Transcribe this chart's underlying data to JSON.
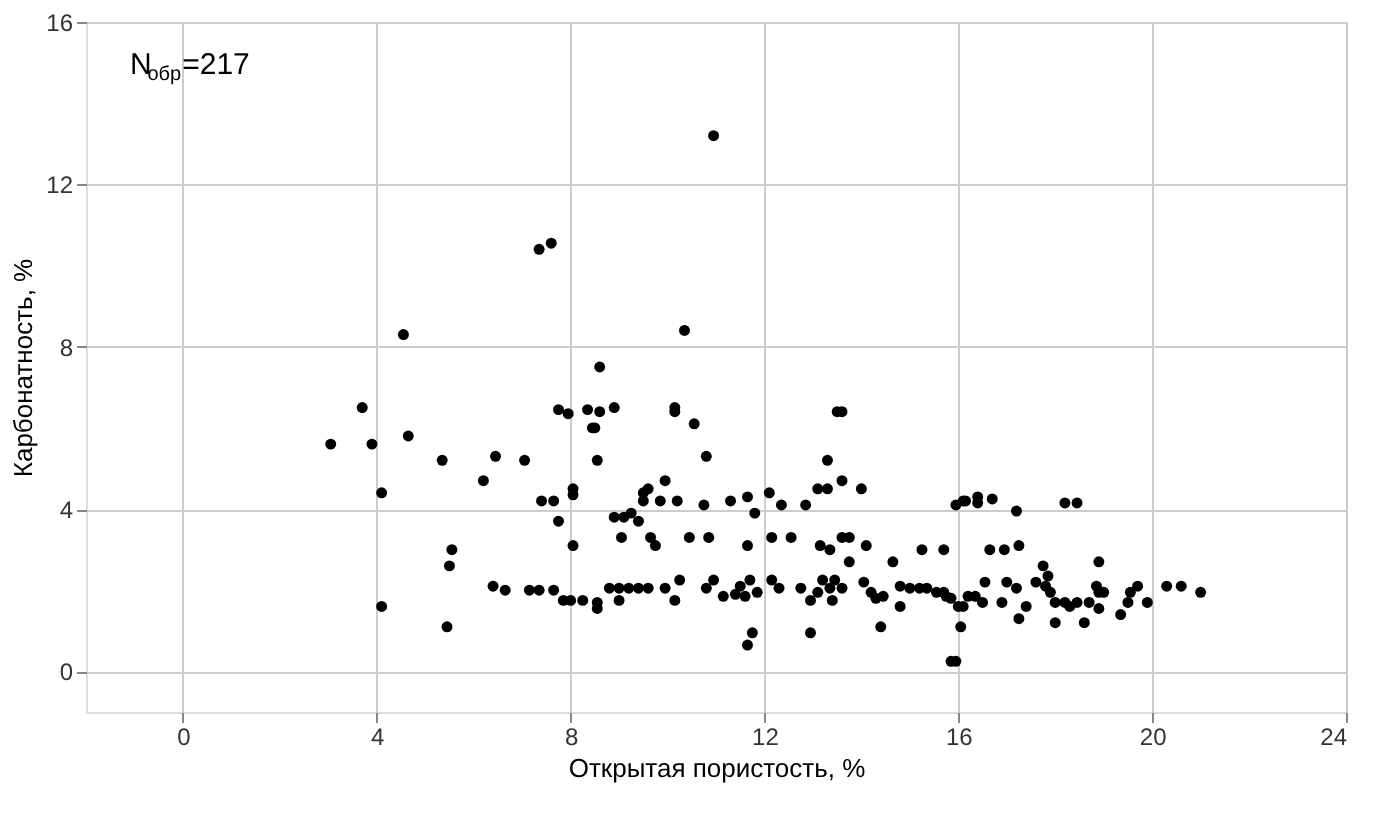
{
  "chart_data": {
    "type": "scatter",
    "xlabel": "Открытая пористость, %",
    "ylabel": "Карбонатность, %",
    "annotations": [
      "N$_{обр}$=217"
    ],
    "xlim": [
      -2,
      24
    ],
    "xticks": [
      0,
      4,
      8,
      12,
      16,
      20,
      24
    ],
    "ylim": [
      -1,
      16
    ],
    "yticks": [
      0,
      4,
      8,
      12,
      16
    ],
    "grid": true,
    "marker": "circle",
    "series": [
      {
        "color": "#000000",
        "x": [
          7.35,
          7.6,
          4.55,
          3.7,
          3.05,
          3.9,
          4.65,
          4.1,
          5.35,
          6.45,
          7.05,
          6.2,
          7.4,
          7.65,
          7.75,
          8.05,
          8.05,
          8.05,
          7.75,
          7.95,
          8.35,
          8.45,
          5.55,
          5.5,
          6.4,
          6.65,
          7.15,
          7.35,
          7.65,
          7.85,
          8.0,
          8.25,
          4.1,
          5.45,
          10.35,
          10.95,
          8.6,
          8.6,
          8.9,
          8.5,
          8.55,
          10.15,
          10.15,
          10.55,
          10.8,
          13.5,
          13.6,
          13.3,
          13.1,
          13.3,
          13.6,
          14.0,
          9.5,
          9.6,
          9.95,
          9.5,
          9.85,
          10.2,
          8.9,
          9.1,
          9.25,
          9.4,
          10.75,
          11.3,
          11.65,
          12.1,
          12.35,
          12.85,
          11.8,
          9.05,
          9.65,
          9.75,
          10.45,
          10.85,
          11.65,
          12.15,
          12.55,
          13.15,
          13.35,
          13.6,
          13.75,
          13.75,
          14.1,
          14.65,
          15.25,
          15.7,
          15.95,
          16.15,
          11.65,
          11.75,
          12.95,
          14.4,
          16.05,
          15.85,
          15.95,
          8.55,
          8.55,
          8.8,
          9.0,
          9.0,
          9.2,
          9.4,
          9.6,
          9.95,
          10.15,
          10.25,
          10.8,
          10.95,
          11.15,
          11.4,
          11.5,
          11.6,
          11.7,
          11.85,
          12.15,
          12.3,
          12.75,
          12.95,
          13.1,
          13.2,
          13.35,
          13.45,
          13.4,
          13.6,
          14.05,
          14.2,
          14.3,
          14.45,
          14.8,
          14.8,
          15.0,
          15.2,
          15.35,
          15.55,
          15.75,
          16.0,
          16.2,
          16.1,
          16.4,
          16.4,
          16.7,
          17.2,
          18.2,
          18.45,
          16.65,
          16.95,
          17.25,
          18.9,
          17.75,
          17.25,
          18.0,
          18.6,
          15.7,
          15.85,
          16.1,
          16.35,
          16.5,
          16.55,
          16.9,
          17.0,
          17.2,
          17.4,
          17.6,
          17.8,
          17.85,
          17.9,
          18.0,
          18.2,
          18.3,
          18.45,
          18.7,
          18.85,
          18.9,
          19.0,
          18.9,
          19.35,
          19.5,
          19.55,
          19.7,
          19.9,
          20.3,
          20.6,
          21.0
        ],
        "values": [
          10.4,
          10.55,
          8.3,
          6.5,
          5.6,
          5.6,
          5.8,
          4.4,
          5.2,
          5.3,
          5.2,
          4.7,
          4.2,
          4.2,
          3.7,
          4.5,
          4.35,
          3.1,
          6.45,
          6.35,
          6.45,
          6.0,
          3.0,
          2.6,
          2.1,
          2.0,
          2.0,
          2.0,
          2.0,
          1.75,
          1.75,
          1.75,
          1.6,
          1.1,
          8.4,
          13.2,
          7.5,
          6.4,
          6.5,
          6.0,
          5.2,
          6.5,
          6.4,
          6.1,
          5.3,
          6.4,
          6.4,
          5.2,
          4.5,
          4.5,
          4.7,
          4.5,
          4.4,
          4.5,
          4.7,
          4.2,
          4.2,
          4.2,
          3.8,
          3.8,
          3.9,
          3.7,
          4.1,
          4.2,
          4.3,
          4.4,
          4.1,
          4.1,
          3.9,
          3.3,
          3.3,
          3.1,
          3.3,
          3.3,
          3.1,
          3.3,
          3.3,
          3.1,
          3.0,
          3.3,
          3.3,
          2.7,
          3.1,
          2.7,
          3.0,
          3.0,
          4.1,
          4.2,
          0.65,
          0.95,
          0.95,
          1.1,
          1.1,
          0.25,
          0.25,
          1.55,
          1.7,
          2.05,
          1.75,
          2.05,
          2.05,
          2.05,
          2.05,
          2.05,
          1.75,
          2.25,
          2.05,
          2.25,
          1.85,
          1.9,
          2.1,
          1.85,
          2.25,
          1.95,
          2.25,
          2.05,
          2.05,
          1.75,
          1.95,
          2.25,
          2.05,
          2.25,
          1.75,
          2.05,
          2.2,
          1.95,
          1.8,
          1.85,
          1.6,
          2.1,
          2.05,
          2.05,
          2.05,
          1.95,
          1.85,
          1.6,
          1.85,
          4.2,
          4.3,
          4.15,
          4.25,
          3.95,
          4.15,
          4.15,
          3.0,
          3.0,
          3.1,
          2.7,
          2.6,
          1.3,
          1.2,
          1.2,
          1.95,
          1.8,
          1.6,
          1.85,
          1.7,
          2.2,
          1.7,
          2.2,
          2.05,
          1.6,
          2.2,
          2.1,
          2.35,
          1.95,
          1.7,
          1.7,
          1.6,
          1.7,
          1.7,
          2.1,
          1.95,
          1.95,
          1.55,
          1.4,
          1.7,
          1.95,
          2.1,
          1.7,
          2.1,
          2.1,
          1.95
        ]
      }
    ]
  }
}
